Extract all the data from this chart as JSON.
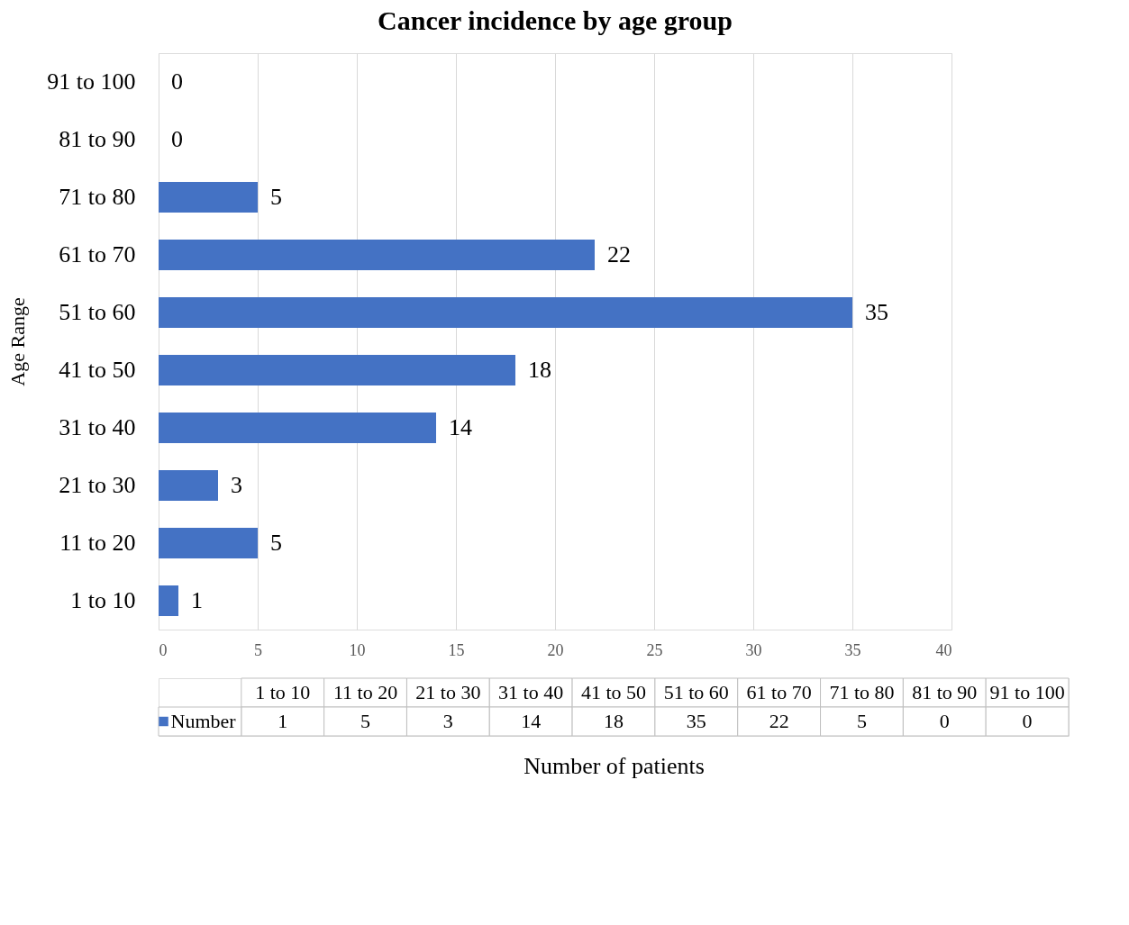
{
  "chart_data": {
    "type": "bar",
    "orientation": "horizontal",
    "title": "Cancer incidence by age group",
    "xlabel": "Number of patients",
    "ylabel": "Age Range",
    "categories": [
      "91 to 100",
      "81 to 90",
      "71 to 80",
      "61 to 70",
      "51 to 60",
      "41 to 50",
      "31 to 40",
      "21 to 30",
      "11 to 20",
      "1 to 10"
    ],
    "series": [
      {
        "name": "Number",
        "color": "#4472c4",
        "values": [
          0,
          0,
          5,
          22,
          35,
          18,
          14,
          3,
          5,
          1
        ]
      }
    ],
    "annotations": [
      "1",
      "5",
      "3",
      "14",
      "18",
      "35",
      "22",
      "5",
      "0",
      "0"
    ],
    "xlim": [
      0,
      40
    ],
    "xticks": [
      0,
      5,
      10,
      15,
      20,
      25,
      30,
      35,
      40
    ],
    "grid": "x",
    "data_labels": true,
    "legend": "bottom"
  }
}
